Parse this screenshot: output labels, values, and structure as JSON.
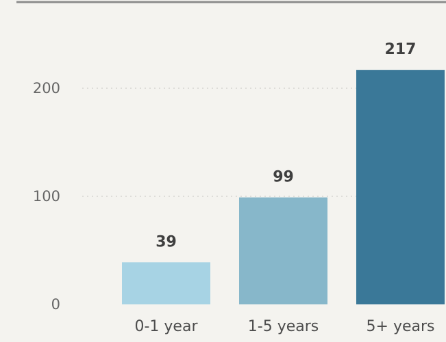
{
  "chart_data": {
    "type": "bar",
    "categories": [
      "0-1 year",
      "1-5 years",
      "5+ years"
    ],
    "values": [
      39,
      99,
      217
    ],
    "data_labels": [
      "39",
      "99",
      "217"
    ],
    "yticks": [
      0,
      100,
      200
    ],
    "ytick_labels": [
      "0",
      "100",
      "200"
    ],
    "ylim": [
      0,
      230
    ],
    "grid": true,
    "legend": "none",
    "bar_colors": [
      "#a7d3e4",
      "#87b7ca",
      "#3a7898"
    ],
    "title": "",
    "xlabel": "",
    "ylabel": ""
  },
  "colors": {
    "background": "#f4f3ef",
    "top_rule": "#8c8c8c",
    "gridline": "#cfcfc9"
  }
}
